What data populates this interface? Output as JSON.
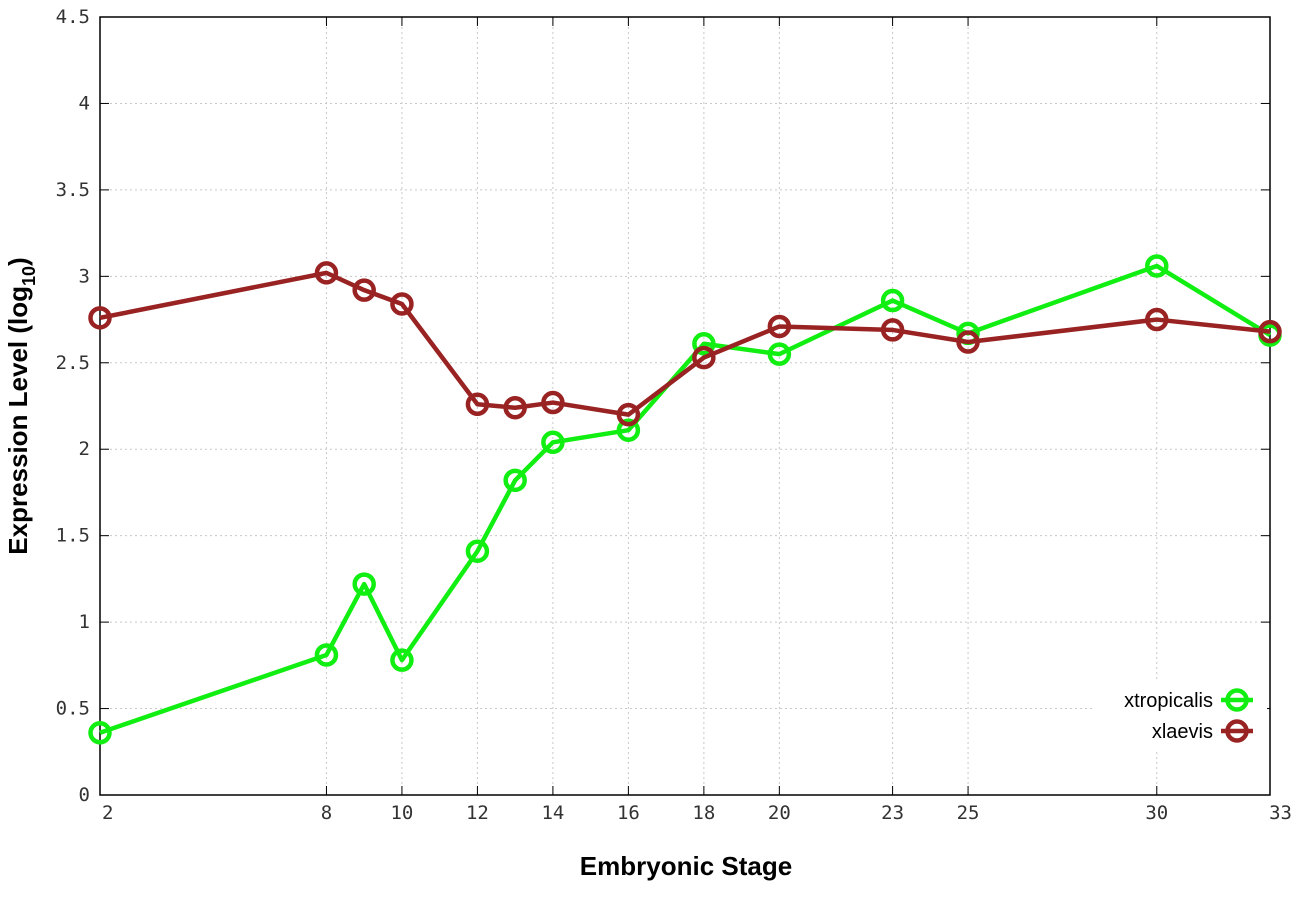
{
  "chart_data": {
    "type": "line",
    "x_tick_labels": [
      "2",
      "8",
      "10",
      "12",
      "14",
      "16",
      "18",
      "20",
      "23",
      "25",
      "30",
      "33"
    ],
    "y_tick_labels": [
      "0",
      "0.5",
      "1",
      "1.5",
      "2",
      "2.5",
      "3",
      "3.5",
      "4",
      "4.5"
    ],
    "xlabel": "Embryonic Stage",
    "ylabel_main": "Expression Level (log",
    "ylabel_sub": "10",
    "ylabel_close": ")",
    "ylim": [
      0,
      4.5
    ],
    "x": [
      "2",
      "8",
      "9",
      "10",
      "12",
      "13",
      "14",
      "16",
      "18",
      "20",
      "23",
      "25",
      "30",
      "33"
    ],
    "series": [
      {
        "name": "xtropicalis",
        "color": "#11ee11",
        "values": [
          0.36,
          0.81,
          1.22,
          0.78,
          1.41,
          1.82,
          2.04,
          2.11,
          2.61,
          2.55,
          2.86,
          2.67,
          3.06,
          2.66
        ]
      },
      {
        "name": "xlaevis",
        "color": "#992222",
        "values": [
          2.76,
          3.02,
          2.92,
          2.84,
          2.26,
          2.24,
          2.27,
          2.2,
          2.53,
          2.71,
          2.69,
          2.62,
          2.75,
          2.68
        ]
      }
    ],
    "legend_position": "bottom-right",
    "grid": true
  }
}
